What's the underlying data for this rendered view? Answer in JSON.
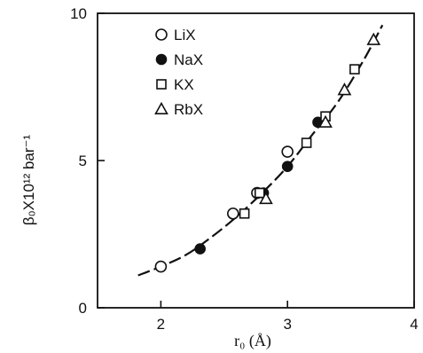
{
  "chart_data": {
    "type": "scatter",
    "xlabel": "r₀ (Å)",
    "ylabel": "β₀X10¹² bar⁻¹",
    "xlim": [
      1.5,
      4
    ],
    "ylim": [
      0,
      10
    ],
    "xticks": [
      "2",
      "3",
      "4"
    ],
    "yticks": [
      "0",
      "5",
      "10"
    ],
    "grid": false,
    "legend_position": "top-left",
    "series": [
      {
        "name": "LiX",
        "marker": "open-circle",
        "x": [
          2.0,
          2.57,
          2.76,
          3.0
        ],
        "y": [
          1.4,
          3.2,
          3.9,
          5.3
        ]
      },
      {
        "name": "NaX",
        "marker": "filled-circle",
        "x": [
          2.31,
          2.81,
          3.0,
          3.24
        ],
        "y": [
          2.0,
          3.9,
          4.8,
          6.3
        ]
      },
      {
        "name": "KX",
        "marker": "open-square",
        "x": [
          2.66,
          2.78,
          3.15,
          3.3,
          3.53
        ],
        "y": [
          3.2,
          3.9,
          5.6,
          6.5,
          8.1
        ]
      },
      {
        "name": "RbX",
        "marker": "open-triangle",
        "x": [
          2.83,
          3.3,
          3.45,
          3.68
        ],
        "y": [
          3.7,
          6.3,
          7.4,
          9.1
        ]
      }
    ],
    "fit_curve": {
      "style": "dashed",
      "x": [
        1.82,
        2.0,
        2.2,
        2.4,
        2.6,
        2.8,
        3.0,
        3.2,
        3.4,
        3.6,
        3.75
      ],
      "y": [
        1.1,
        1.4,
        1.8,
        2.4,
        3.1,
        3.9,
        4.8,
        5.9,
        7.0,
        8.4,
        9.6
      ]
    }
  }
}
